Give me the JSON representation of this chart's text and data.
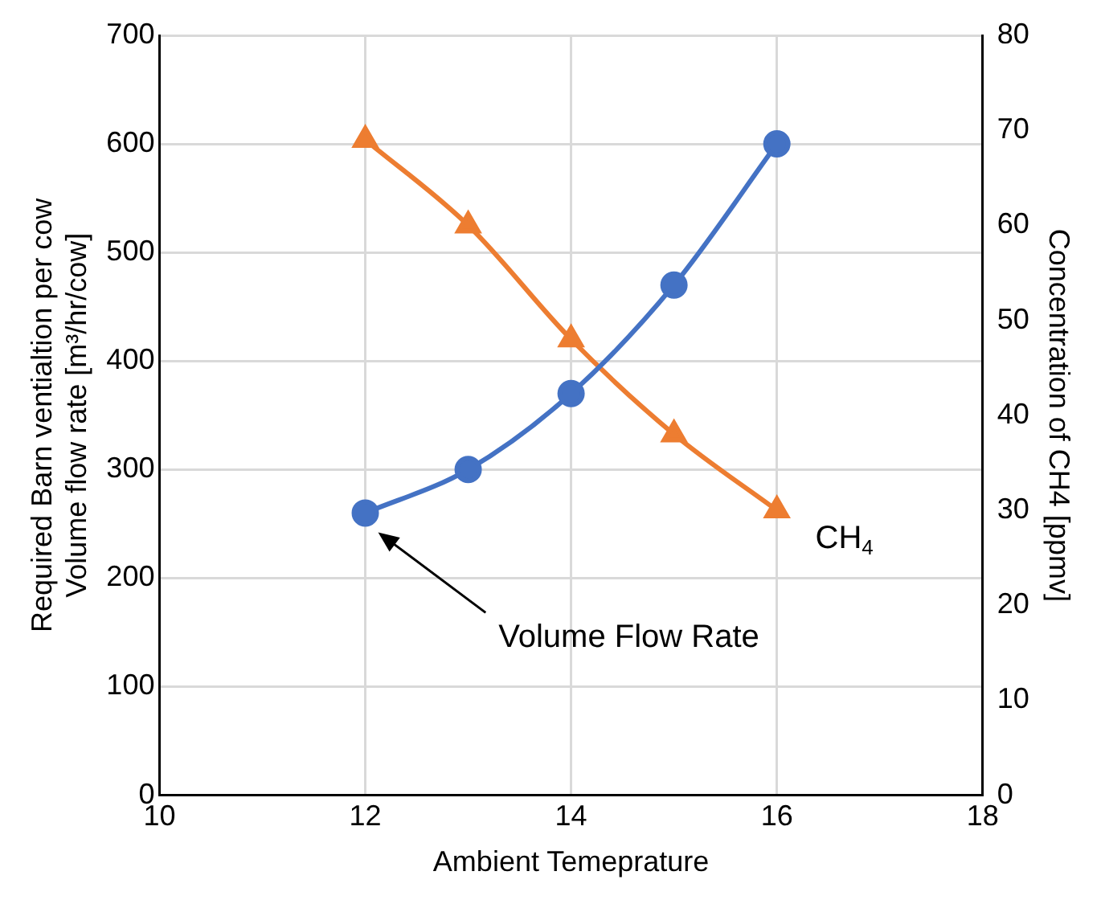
{
  "chart_data": {
    "type": "line",
    "xlabel": "Ambient Temeprature",
    "ylabel": "Required Barn ventialtion per cow\nVolume flow rate [m³/hr/cow]",
    "y2label": "Concentration of CH4 [ppmv]",
    "x": [
      12,
      13,
      14,
      15,
      16
    ],
    "series": [
      {
        "color": "#4472c4",
        "marker": "circle",
        "values": [
          260,
          300,
          370,
          470,
          600
        ]
      },
      {
        "color": "#ed7d31",
        "marker": "triangle",
        "axis": "y2",
        "values": [
          69,
          60,
          48,
          38,
          30
        ]
      }
    ],
    "xlim": [
      10,
      18
    ],
    "xticks": [
      10,
      12,
      14,
      16,
      18
    ],
    "ylim": [
      0,
      700
    ],
    "yticks": [
      0,
      100,
      200,
      300,
      400,
      500,
      600,
      700
    ],
    "y2lim": [
      0,
      80
    ],
    "y2ticks": [
      0,
      10,
      20,
      30,
      40,
      50,
      60,
      70,
      80
    ],
    "grid": true,
    "legend": false,
    "annotations": [
      "CH$_{4}$",
      "Volume Flow Rate"
    ]
  }
}
